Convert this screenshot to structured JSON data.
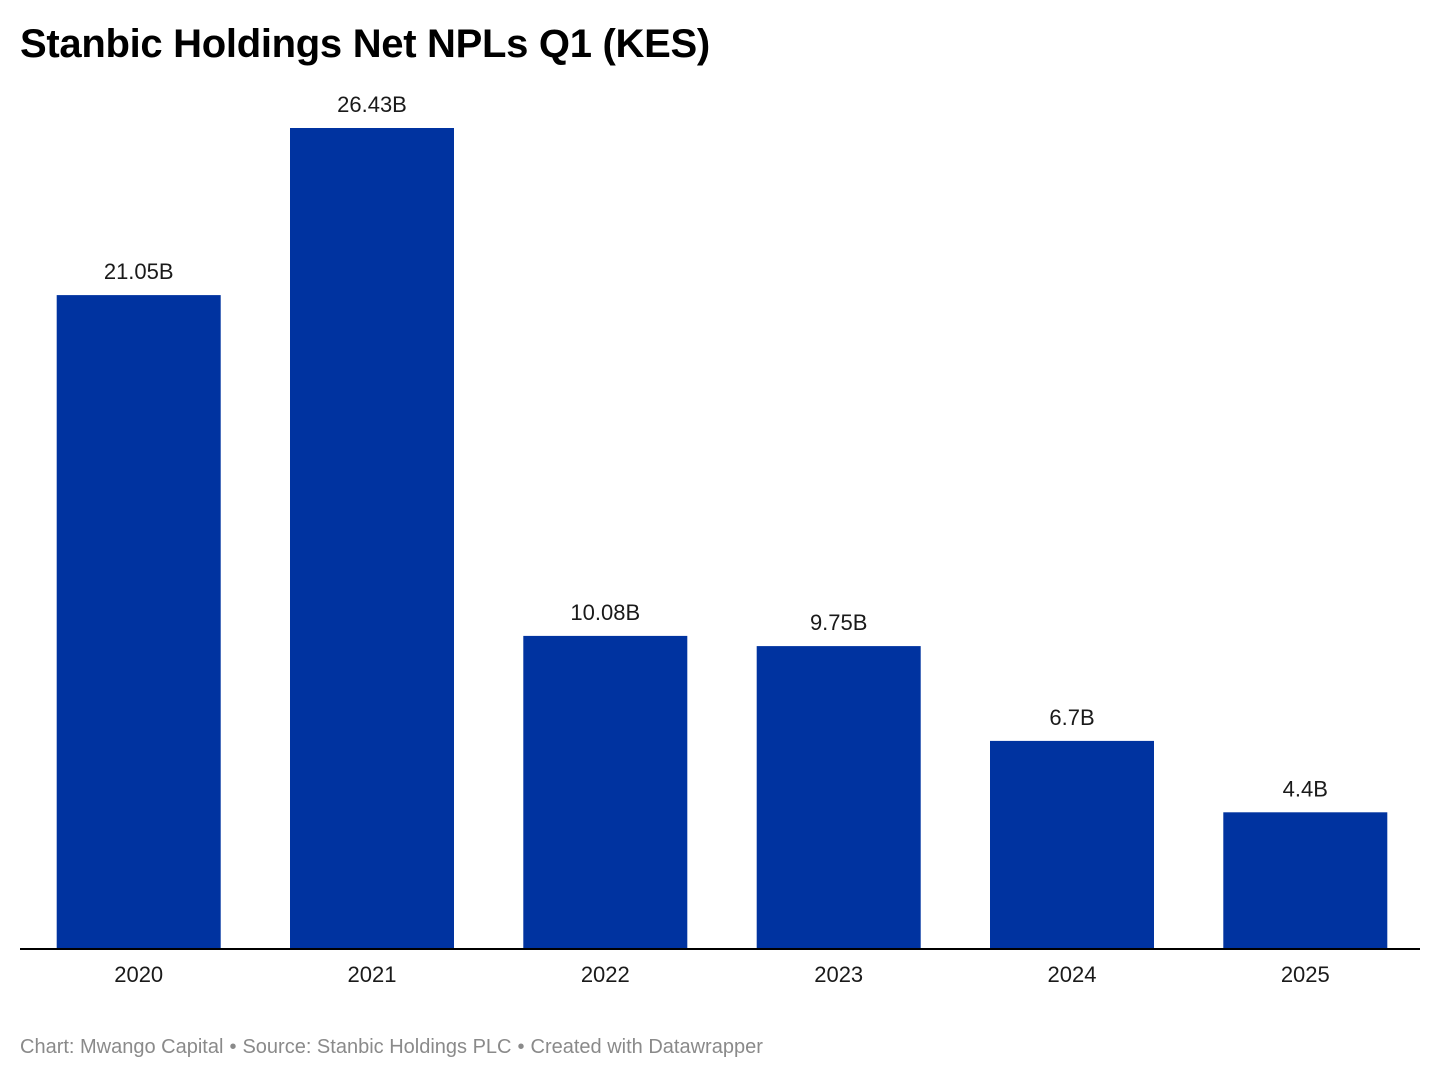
{
  "title": "Stanbic Holdings Net NPLs Q1 (KES)",
  "footer": {
    "chart_credit": "Chart: Mwango Capital",
    "source": "Source: Stanbic Holdings PLC",
    "created_with": "Created with Datawrapper",
    "separator": "•"
  },
  "colors": {
    "bar": "#0033a0",
    "axis": "#000000",
    "footer_text": "#8a8a8a"
  },
  "chart_data": {
    "type": "bar",
    "title": "Stanbic Holdings Net NPLs Q1 (KES)",
    "xlabel": "",
    "ylabel": "",
    "unit": "KES billions",
    "categories": [
      "2020",
      "2021",
      "2022",
      "2023",
      "2024",
      "2025"
    ],
    "values": [
      21.05,
      26.43,
      10.08,
      9.75,
      6.7,
      4.4
    ],
    "value_labels": [
      "21.05B",
      "26.43B",
      "10.08B",
      "9.75B",
      "6.7B",
      "4.4B"
    ],
    "ylim": [
      0,
      26.43
    ],
    "grid": false,
    "legend": "none"
  }
}
